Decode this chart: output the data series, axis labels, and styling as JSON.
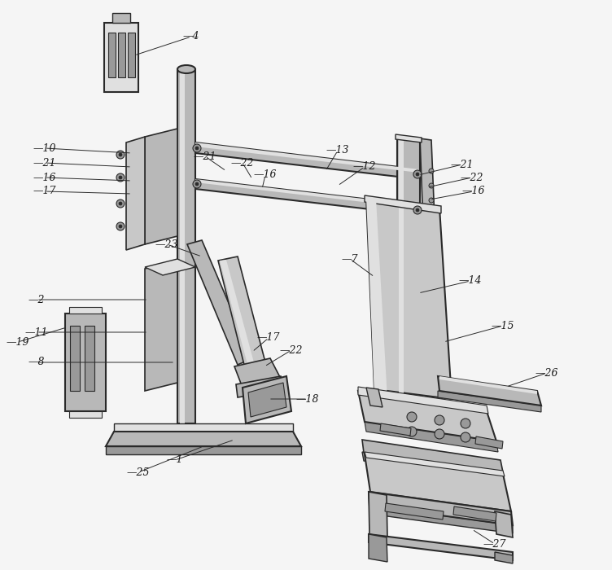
{
  "bg_color": "#f5f5f5",
  "line_color": "#2a2a2a",
  "label_color": "#1a1a1a",
  "fig_width": 7.52,
  "fig_height": 7.0,
  "dpi": 100,
  "gray_fill": "#c8c8c8",
  "gray_dark": "#999999",
  "gray_light": "#e0e0e0",
  "gray_mid": "#b8b8b8"
}
